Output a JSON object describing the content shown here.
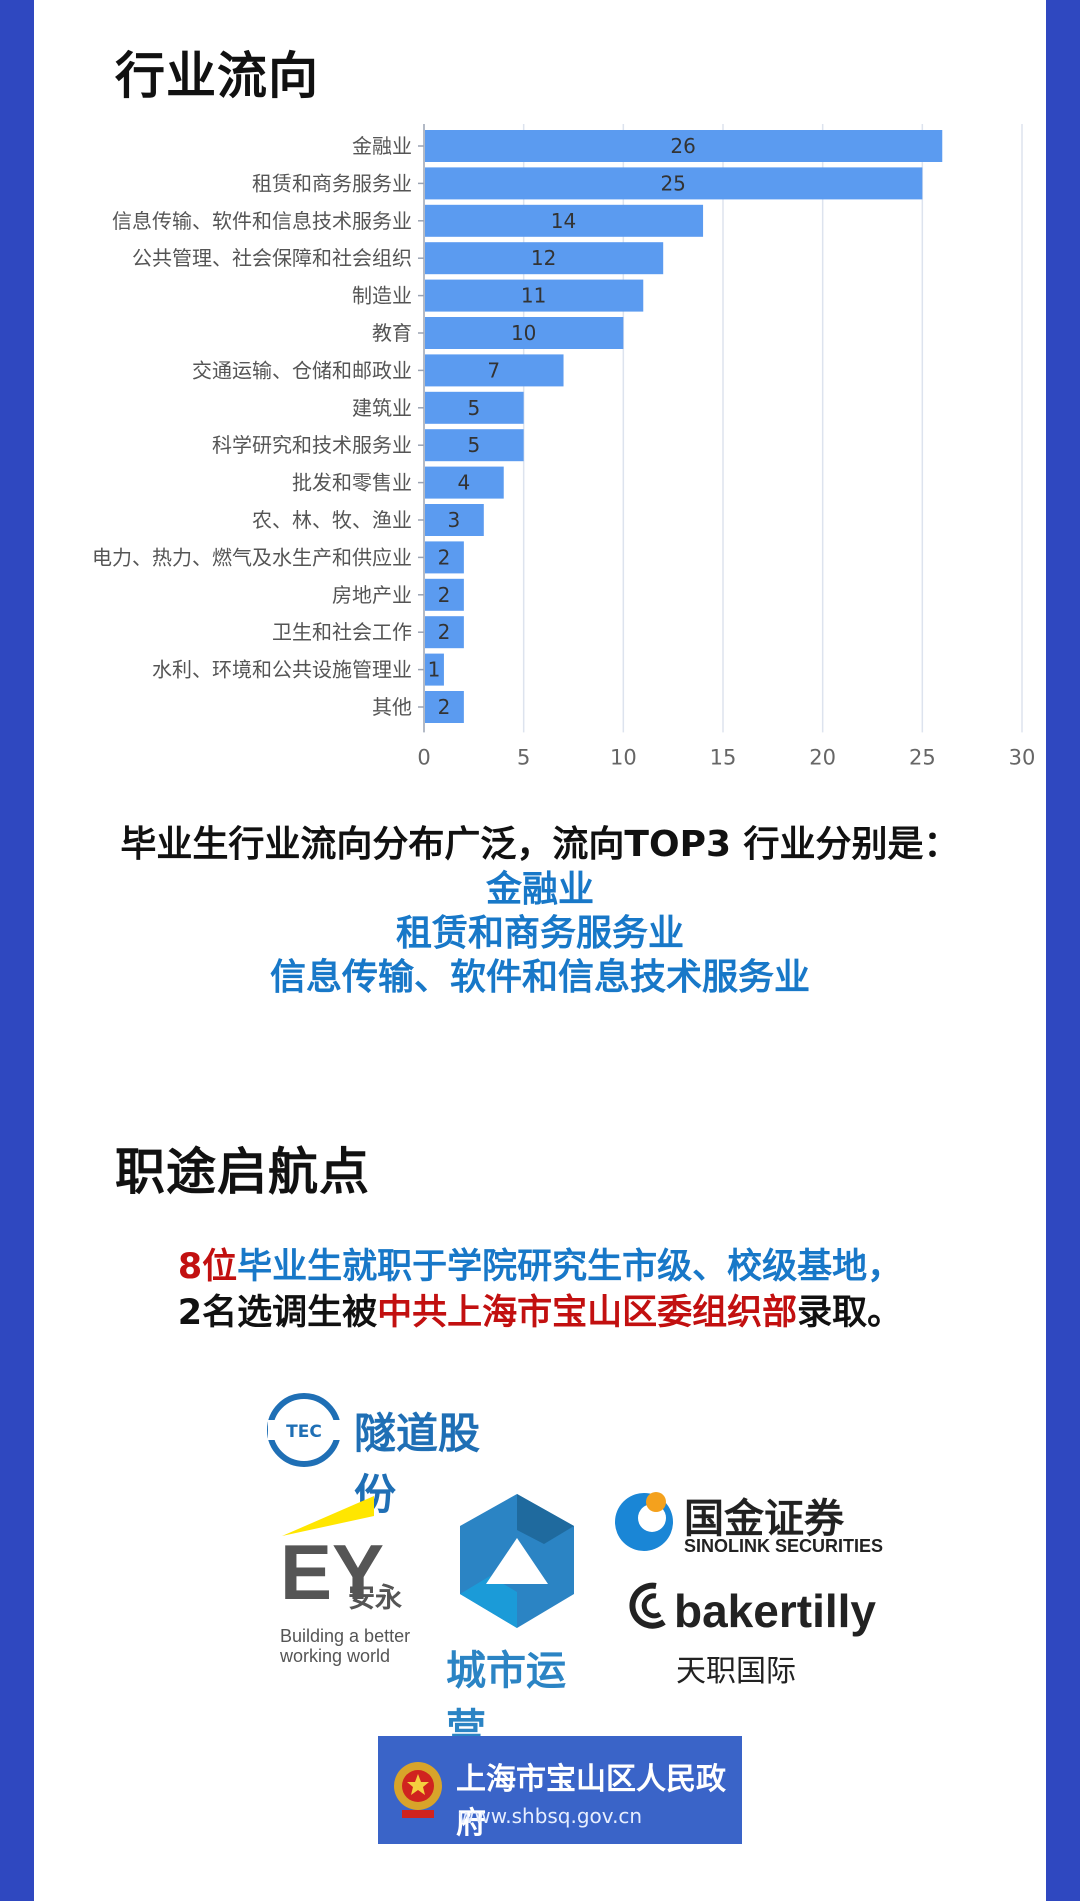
{
  "sections": {
    "industry_title": "行业流向",
    "career_title": "职途启航点"
  },
  "chart_data": {
    "type": "bar",
    "orientation": "horizontal",
    "categories": [
      "金融业",
      "租赁和商务服务业",
      "信息传输、软件和信息技术服务业",
      "公共管理、社会保障和社会组织",
      "制造业",
      "教育",
      "交通运输、仓储和邮政业",
      "建筑业",
      "科学研究和技术服务业",
      "批发和零售业",
      "农、林、牧、渔业",
      "电力、热力、燃气及水生产和供应业",
      "房地产业",
      "卫生和社会工作",
      "水利、环境和公共设施管理业",
      "其他"
    ],
    "values": [
      26,
      25,
      14,
      12,
      11,
      10,
      7,
      5,
      5,
      4,
      3,
      2,
      2,
      2,
      1,
      2
    ],
    "xlim": [
      0,
      30
    ],
    "xticks": [
      0,
      5,
      10,
      15,
      20,
      25,
      30
    ],
    "grid": true,
    "legend": "none",
    "bar_color": "#5b9bf0"
  },
  "summary": {
    "lead": "毕业生行业流向分布广泛，流向TOP3 行业分别是：",
    "top1": "金融业",
    "top2": "租赁和商务服务业",
    "top3": "信息传输、软件和信息技术服务业"
  },
  "placement": {
    "count": "8位",
    "line1_rest": "毕业生就职于学院研究生市级、校级基地，",
    "line2_a": "2名选调生被",
    "line2_org": "中共上海市宝山区委组织部",
    "line2_b": "录取。"
  },
  "logos": {
    "tec": {
      "badge": "TEC",
      "name": "隧道股份"
    },
    "ey": {
      "mark": "EY",
      "cn": "安永",
      "tag1": "Building a better",
      "tag2": "working world"
    },
    "city": {
      "name": "城市运营"
    },
    "sinolink": {
      "cn": "国金证券",
      "en": "SINOLINK SECURITIES"
    },
    "bakertilly": {
      "en": "bakertilly",
      "cn": "天职国际"
    },
    "gov": {
      "name": "上海市宝山区人民政府",
      "url": "www.shbsq.gov.cn"
    }
  },
  "colors": {
    "frame": "#2f48c0",
    "accent_blue": "#1878c8",
    "accent_red": "#c21010"
  }
}
